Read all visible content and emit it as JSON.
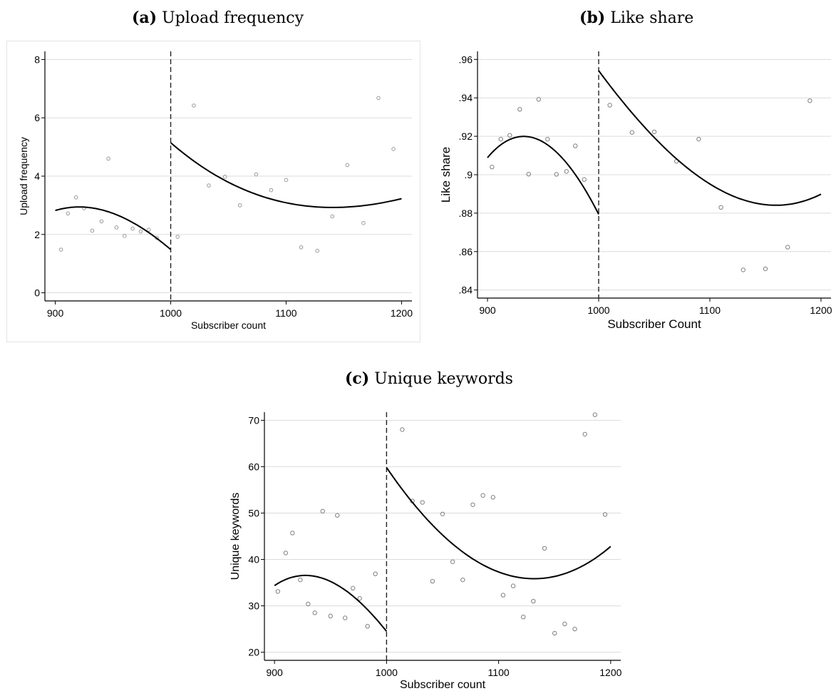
{
  "chart_data": [
    {
      "type": "scatter",
      "panel_label": "(a)",
      "title": "Upload frequency",
      "xlabel": "Subscriber count",
      "ylabel": "Upload frequency",
      "xlim": [
        900,
        1200
      ],
      "ylim": [
        0,
        8
      ],
      "xticks": [
        "900",
        "1000",
        "1100",
        "1200"
      ],
      "yticks": [
        "0",
        "2",
        "4",
        "6",
        "8"
      ],
      "cutoff": 1000,
      "grid": true,
      "points": [
        [
          905,
          1.48
        ],
        [
          911,
          2.72
        ],
        [
          918,
          3.27
        ],
        [
          925,
          2.9
        ],
        [
          932,
          2.13
        ],
        [
          940,
          2.45
        ],
        [
          946,
          4.6
        ],
        [
          953,
          2.24
        ],
        [
          960,
          1.95
        ],
        [
          967,
          2.2
        ],
        [
          974,
          2.1
        ],
        [
          981,
          2.16
        ],
        [
          988,
          1.88
        ],
        [
          1006,
          1.92
        ],
        [
          1020,
          6.42
        ],
        [
          1033,
          3.68
        ],
        [
          1047,
          3.98
        ],
        [
          1060,
          3.0
        ],
        [
          1074,
          4.06
        ],
        [
          1087,
          3.52
        ],
        [
          1100,
          3.87
        ],
        [
          1113,
          1.56
        ],
        [
          1127,
          1.44
        ],
        [
          1140,
          2.62
        ],
        [
          1153,
          4.38
        ],
        [
          1167,
          2.39
        ],
        [
          1180,
          6.68
        ],
        [
          1193,
          4.93
        ]
      ],
      "fit_left": [
        [
          900,
          2.82
        ],
        [
          920,
          2.95
        ],
        [
          940,
          2.84
        ],
        [
          960,
          2.55
        ],
        [
          980,
          2.1
        ],
        [
          1000,
          1.48
        ]
      ],
      "fit_right": [
        [
          1000,
          5.15
        ],
        [
          1040,
          4.0
        ],
        [
          1080,
          3.3
        ],
        [
          1120,
          2.97
        ],
        [
          1150,
          2.93
        ],
        [
          1180,
          3.06
        ],
        [
          1200,
          3.23
        ]
      ]
    },
    {
      "type": "scatter",
      "panel_label": "(b)",
      "title": "Like share",
      "xlabel": "Subscriber Count",
      "ylabel": "Like share",
      "xlim": [
        900,
        1200
      ],
      "ylim": [
        0.84,
        0.96
      ],
      "xticks": [
        "900",
        "1000",
        "1100",
        "1200"
      ],
      "yticks": [
        ".84",
        ".86",
        ".88",
        ".9",
        ".92",
        ".94",
        ".96"
      ],
      "cutoff": 1000,
      "grid": true,
      "points": [
        [
          904,
          0.904
        ],
        [
          912,
          0.9185
        ],
        [
          920,
          0.9205
        ],
        [
          929,
          0.934
        ],
        [
          937,
          0.9003
        ],
        [
          946,
          0.9392
        ],
        [
          954,
          0.9185
        ],
        [
          962,
          0.9002
        ],
        [
          971,
          0.9017
        ],
        [
          979,
          0.915
        ],
        [
          987,
          0.8975
        ],
        [
          1010,
          0.9362
        ],
        [
          1030,
          0.922
        ],
        [
          1050,
          0.9223
        ],
        [
          1070,
          0.907
        ],
        [
          1090,
          0.9185
        ],
        [
          1110,
          0.883
        ],
        [
          1130,
          0.8505
        ],
        [
          1150,
          0.851
        ],
        [
          1170,
          0.8623
        ],
        [
          1190,
          0.9385
        ]
      ],
      "fit_left": [
        [
          900,
          0.909
        ],
        [
          915,
          0.9165
        ],
        [
          935,
          0.92
        ],
        [
          960,
          0.913
        ],
        [
          980,
          0.899
        ],
        [
          1000,
          0.8795
        ]
      ],
      "fit_right": [
        [
          1000,
          0.954
        ],
        [
          1040,
          0.926
        ],
        [
          1080,
          0.903
        ],
        [
          1120,
          0.889
        ],
        [
          1155,
          0.8845
        ],
        [
          1180,
          0.8855
        ],
        [
          1200,
          0.8898
        ]
      ]
    },
    {
      "type": "scatter",
      "panel_label": "(c)",
      "title": "Unique keywords",
      "xlabel": "Subscriber count",
      "ylabel": "Unique keywords",
      "xlim": [
        900,
        1200
      ],
      "ylim": [
        20,
        70
      ],
      "xticks": [
        "900",
        "1000",
        "1100",
        "1200"
      ],
      "yticks": [
        "20",
        "30",
        "40",
        "50",
        "60",
        "70"
      ],
      "cutoff": 1000,
      "grid": true,
      "points": [
        [
          903,
          33.1
        ],
        [
          910,
          41.4
        ],
        [
          916,
          45.7
        ],
        [
          923,
          35.6
        ],
        [
          930,
          30.4
        ],
        [
          936,
          28.5
        ],
        [
          943,
          50.4
        ],
        [
          950,
          27.8
        ],
        [
          956,
          49.5
        ],
        [
          963,
          27.4
        ],
        [
          970,
          33.8
        ],
        [
          976,
          31.6
        ],
        [
          983,
          25.6
        ],
        [
          990,
          36.9
        ],
        [
          1014,
          68.0
        ],
        [
          1023,
          52.6
        ],
        [
          1032,
          52.3
        ],
        [
          1041,
          35.3
        ],
        [
          1050,
          49.8
        ],
        [
          1059,
          39.5
        ],
        [
          1068,
          35.6
        ],
        [
          1077,
          51.8
        ],
        [
          1086,
          53.8
        ],
        [
          1095,
          53.4
        ],
        [
          1104,
          32.3
        ],
        [
          1113,
          34.3
        ],
        [
          1122,
          27.6
        ],
        [
          1131,
          31.0
        ],
        [
          1141,
          42.4
        ],
        [
          1150,
          24.1
        ],
        [
          1159,
          26.1
        ],
        [
          1168,
          25.0
        ],
        [
          1177,
          67.0
        ],
        [
          1186,
          71.2
        ],
        [
          1195,
          49.7
        ]
      ],
      "fit_left": [
        [
          900,
          34.4
        ],
        [
          915,
          36.0
        ],
        [
          930,
          36.6
        ],
        [
          950,
          35.3
        ],
        [
          975,
          31.0
        ],
        [
          1000,
          24.5
        ]
      ],
      "fit_right": [
        [
          1000,
          59.8
        ],
        [
          1040,
          47.7
        ],
        [
          1080,
          39.6
        ],
        [
          1130,
          35.9
        ],
        [
          1160,
          37.0
        ],
        [
          1200,
          42.8
        ]
      ]
    }
  ]
}
